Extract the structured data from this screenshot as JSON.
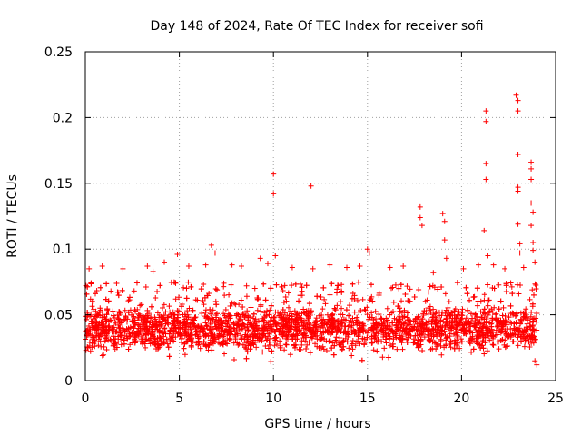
{
  "chart_data": {
    "type": "scatter",
    "title": "Day 148 of 2024, Rate Of TEC Index for receiver sofi",
    "xlabel": "GPS time / hours",
    "ylabel": "ROTI / TECUs",
    "xlim": [
      0,
      25
    ],
    "ylim": [
      0,
      0.25
    ],
    "xticks": [
      "0",
      "5",
      "10",
      "15",
      "20",
      "25"
    ],
    "yticks": [
      "0",
      "0.05",
      "0.1",
      "0.15",
      "0.2",
      "0.25"
    ],
    "grid": true,
    "marker": "plus",
    "color": "#ff0000",
    "series": [
      {
        "name": "ROTI",
        "band": {
          "note": "dense cloud of points from 0 to 24 h, mostly between 0.015 and 0.07 TECU/min",
          "x_range": [
            0,
            24
          ],
          "y_range": [
            0.012,
            0.07
          ]
        },
        "points": [
          [
            0.2,
            0.085
          ],
          [
            0.9,
            0.087
          ],
          [
            2.0,
            0.085
          ],
          [
            3.3,
            0.087
          ],
          [
            3.6,
            0.083
          ],
          [
            4.2,
            0.09
          ],
          [
            4.9,
            0.096
          ],
          [
            5.5,
            0.087
          ],
          [
            6.4,
            0.088
          ],
          [
            6.7,
            0.103
          ],
          [
            6.9,
            0.097
          ],
          [
            7.8,
            0.088
          ],
          [
            8.3,
            0.087
          ],
          [
            9.3,
            0.093
          ],
          [
            9.7,
            0.089
          ],
          [
            10.0,
            0.157
          ],
          [
            10.0,
            0.142
          ],
          [
            10.1,
            0.095
          ],
          [
            11.0,
            0.086
          ],
          [
            12.0,
            0.148
          ],
          [
            12.1,
            0.085
          ],
          [
            13.0,
            0.088
          ],
          [
            13.9,
            0.086
          ],
          [
            14.6,
            0.087
          ],
          [
            15.0,
            0.1
          ],
          [
            15.1,
            0.097
          ],
          [
            16.2,
            0.086
          ],
          [
            16.9,
            0.087
          ],
          [
            17.8,
            0.132
          ],
          [
            17.8,
            0.124
          ],
          [
            17.9,
            0.118
          ],
          [
            18.5,
            0.082
          ],
          [
            19.0,
            0.127
          ],
          [
            19.1,
            0.121
          ],
          [
            19.1,
            0.107
          ],
          [
            19.2,
            0.093
          ],
          [
            20.1,
            0.085
          ],
          [
            20.9,
            0.088
          ],
          [
            21.3,
            0.205
          ],
          [
            21.3,
            0.197
          ],
          [
            21.3,
            0.165
          ],
          [
            21.3,
            0.153
          ],
          [
            21.2,
            0.114
          ],
          [
            21.4,
            0.095
          ],
          [
            21.7,
            0.088
          ],
          [
            22.3,
            0.085
          ],
          [
            22.9,
            0.217
          ],
          [
            23.0,
            0.213
          ],
          [
            23.0,
            0.205
          ],
          [
            23.0,
            0.172
          ],
          [
            23.0,
            0.147
          ],
          [
            23.0,
            0.144
          ],
          [
            23.0,
            0.119
          ],
          [
            23.1,
            0.104
          ],
          [
            23.1,
            0.097
          ],
          [
            23.3,
            0.086
          ],
          [
            23.7,
            0.166
          ],
          [
            23.7,
            0.161
          ],
          [
            23.7,
            0.153
          ],
          [
            23.7,
            0.135
          ],
          [
            23.8,
            0.128
          ],
          [
            23.7,
            0.118
          ],
          [
            23.8,
            0.105
          ],
          [
            23.8,
            0.099
          ],
          [
            23.9,
            0.09
          ],
          [
            23.9,
            0.015
          ],
          [
            24.0,
            0.012
          ]
        ]
      }
    ]
  }
}
